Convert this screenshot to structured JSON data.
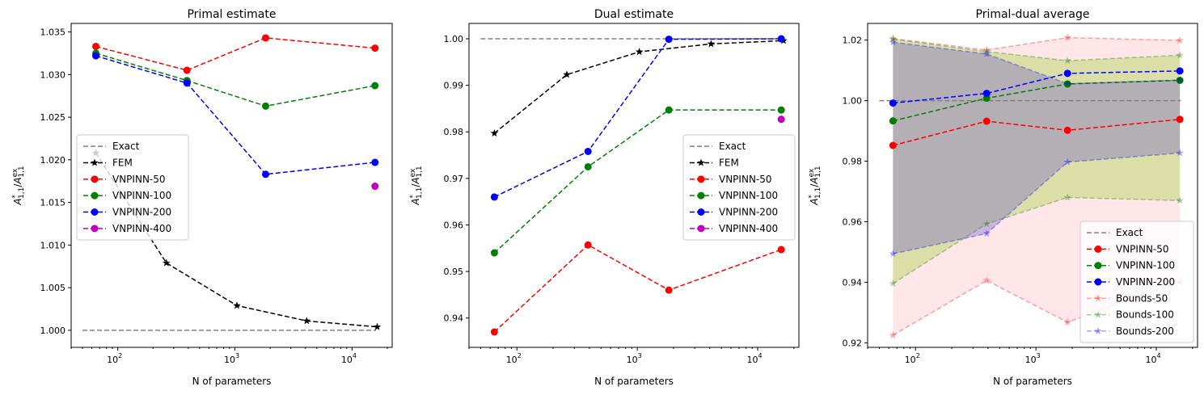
{
  "chart_data": [
    {
      "type": "line",
      "title": "Primal estimate",
      "xlabel": "N of parameters",
      "ylabel": "A*1,1/Aex1,1",
      "xscale": "log",
      "xlim": [
        40,
        22000
      ],
      "ylim": [
        0.998,
        1.036
      ],
      "yticks": [
        "1.000",
        "1.005",
        "1.010",
        "1.015",
        "1.020",
        "1.025",
        "1.030",
        "1.035"
      ],
      "xticks": [
        "10",
        "2",
        "10",
        "3",
        "10",
        "4"
      ],
      "legend_position": "center-left",
      "series": [
        {
          "name": "Exact",
          "color": "#808080",
          "marker": "none",
          "x": [
            50,
            16000
          ],
          "y": [
            1.0,
            1.0
          ]
        },
        {
          "name": "FEM",
          "color": "#000000",
          "marker": "star",
          "x": [
            65,
            260,
            1040,
            4100,
            16400
          ],
          "y": [
            1.0208,
            1.0079,
            1.0029,
            1.0011,
            1.0004
          ]
        },
        {
          "name": "VNPINN-50",
          "color": "#ff0000",
          "marker": "circle",
          "x": [
            65,
            390,
            1830,
            15700
          ],
          "y": [
            1.0333,
            1.0305,
            1.0343,
            1.0331
          ]
        },
        {
          "name": "VNPINN-100",
          "color": "#008000",
          "marker": "circle",
          "x": [
            65,
            390,
            1830,
            15700
          ],
          "y": [
            1.0325,
            1.0293,
            1.0263,
            1.0287
          ]
        },
        {
          "name": "VNPINN-200",
          "color": "#0000ff",
          "marker": "circle",
          "x": [
            65,
            390,
            1830,
            15700
          ],
          "y": [
            1.0322,
            1.029,
            1.0183,
            1.0197
          ]
        },
        {
          "name": "VNPINN-400",
          "color": "#bf00bf",
          "marker": "circle",
          "x": [
            15700
          ],
          "y": [
            1.0169
          ]
        }
      ]
    },
    {
      "type": "line",
      "title": "Dual estimate",
      "xlabel": "N of parameters",
      "ylabel": "A*1,1/Aex1,1",
      "xscale": "log",
      "xlim": [
        40,
        22000
      ],
      "ylim": [
        0.9337,
        1.0033
      ],
      "yticks": [
        "0.94",
        "0.95",
        "0.96",
        "0.97",
        "0.98",
        "0.99",
        "1.00"
      ],
      "xticks": [
        "10",
        "2",
        "10",
        "3",
        "10",
        "4"
      ],
      "legend_position": "center-right",
      "series": [
        {
          "name": "Exact",
          "color": "#808080",
          "marker": "none",
          "x": [
            50,
            16000
          ],
          "y": [
            1.0,
            1.0
          ]
        },
        {
          "name": "FEM",
          "color": "#000000",
          "marker": "star",
          "x": [
            65,
            260,
            1040,
            4100,
            16400
          ],
          "y": [
            0.9797,
            0.9923,
            0.9972,
            0.9989,
            0.9996
          ]
        },
        {
          "name": "VNPINN-50",
          "color": "#ff0000",
          "marker": "circle",
          "x": [
            65,
            390,
            1830,
            15700
          ],
          "y": [
            0.937,
            0.9557,
            0.946,
            0.9547
          ]
        },
        {
          "name": "VNPINN-100",
          "color": "#008000",
          "marker": "circle",
          "x": [
            65,
            390,
            1830,
            15700
          ],
          "y": [
            0.954,
            0.9725,
            0.9847,
            0.9847
          ]
        },
        {
          "name": "VNPINN-200",
          "color": "#0000ff",
          "marker": "circle",
          "x": [
            65,
            390,
            1830,
            15700
          ],
          "y": [
            0.966,
            0.9758,
            0.9999,
            1.0
          ]
        },
        {
          "name": "VNPINN-400",
          "color": "#bf00bf",
          "marker": "circle",
          "x": [
            15700
          ],
          "y": [
            0.9827
          ]
        }
      ]
    },
    {
      "type": "line",
      "title": "Primal-dual average",
      "xlabel": "N of parameters",
      "ylabel": "A*1,1/Aex1,1",
      "xscale": "log",
      "xlim": [
        40,
        22000
      ],
      "ylim": [
        0.9185,
        1.0255
      ],
      "yticks": [
        "0.92",
        "0.94",
        "0.96",
        "0.98",
        "1.00",
        "1.02"
      ],
      "xticks": [
        "10",
        "2",
        "10",
        "3",
        "10",
        "4"
      ],
      "legend_position": "lower-right",
      "series": [
        {
          "name": "Exact",
          "color": "#808080",
          "marker": "none",
          "x": [
            50,
            16000
          ],
          "y": [
            1.0,
            1.0
          ]
        },
        {
          "name": "VNPINN-50",
          "color": "#ff0000",
          "marker": "circle",
          "x": [
            65,
            390,
            1830,
            15700
          ],
          "y": [
            0.9852,
            0.9932,
            0.9902,
            0.9938
          ]
        },
        {
          "name": "VNPINN-100",
          "color": "#008000",
          "marker": "circle",
          "x": [
            65,
            390,
            1830,
            15700
          ],
          "y": [
            0.9933,
            1.0008,
            1.0055,
            1.0067
          ]
        },
        {
          "name": "VNPINN-200",
          "color": "#0000ff",
          "marker": "circle",
          "x": [
            65,
            390,
            1830,
            15700
          ],
          "y": [
            0.9992,
            1.0024,
            1.009,
            1.0098
          ]
        },
        {
          "name": "Bounds-50",
          "color": "#ff0000",
          "marker": "star",
          "x": [
            65,
            390,
            1830,
            15700
          ],
          "upper": [
            1.0205,
            1.0167,
            1.0208,
            1.0199
          ],
          "lower": [
            0.9225,
            0.9406,
            0.9268,
            0.9401
          ],
          "fill": "#ffb6c1"
        },
        {
          "name": "Bounds-100",
          "color": "#008000",
          "marker": "star",
          "x": [
            65,
            390,
            1830,
            15700
          ],
          "upper": [
            1.0203,
            1.0162,
            1.0132,
            1.015
          ],
          "lower": [
            0.9396,
            0.9593,
            0.968,
            0.967
          ],
          "fill": "#9acd32"
        },
        {
          "name": "Bounds-200",
          "color": "#0000ff",
          "marker": "star",
          "x": [
            65,
            390,
            1830,
            15700
          ],
          "upper": [
            1.0193,
            1.0154,
            1.0056,
            1.0068
          ],
          "lower": [
            0.9494,
            0.9561,
            0.9797,
            0.9827
          ],
          "fill": "#6a5acd"
        }
      ]
    }
  ]
}
